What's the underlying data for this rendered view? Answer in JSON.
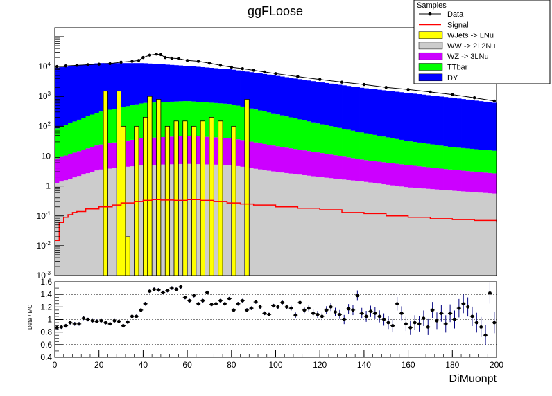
{
  "title": "ggFLoose",
  "chart_data": [
    {
      "type": "area",
      "title": "ggFLoose",
      "log_y": true,
      "xlim": [
        0,
        200
      ],
      "ylim": [
        0.001,
        200000
      ],
      "ytick_labels": [
        "10^-3",
        "10^-2",
        "10^-1",
        "1",
        "10",
        "10^2",
        "10^3",
        "10^4"
      ],
      "legend": {
        "title": "Samples",
        "placement": "top-right",
        "entries": [
          {
            "label": "Data",
            "color": "#000000",
            "style": "marker"
          },
          {
            "label": "Signal",
            "color": "#ff0000",
            "style": "line"
          },
          {
            "label": "WJets -> LNu",
            "color": "#ffff00",
            "style": "fill"
          },
          {
            "label": "WW -> 2L2Nu",
            "color": "#cccccc",
            "style": "fill"
          },
          {
            "label": "WZ -> 3LNu",
            "color": "#cc00ff",
            "style": "fill"
          },
          {
            "label": "TTbar",
            "color": "#00ff00",
            "style": "fill"
          },
          {
            "label": "DY",
            "color": "#0000ff",
            "style": "fill"
          }
        ]
      },
      "bin_width": 2,
      "stack_order": [
        "WW -> 2L2Nu",
        "WZ -> 3LNu",
        "TTbar",
        "DY"
      ],
      "stack_edges_x": [
        0,
        20,
        40,
        60,
        80,
        100,
        120,
        140,
        160,
        180,
        200
      ],
      "stack_edges": {
        "WW -> 2L2Nu": [
          1.2,
          3.5,
          5.0,
          5.5,
          5.0,
          3.0,
          2.0,
          1.4,
          0.9,
          0.7,
          0.55
        ],
        "WZ -> 3LNu": [
          8,
          24,
          40,
          48,
          40,
          22,
          13,
          7.5,
          5,
          3.5,
          2.6
        ],
        "TTbar": [
          80,
          300,
          600,
          700,
          550,
          260,
          120,
          60,
          32,
          20,
          15
        ],
        "DY": [
          9000,
          13000,
          13000,
          10500,
          8000,
          5000,
          3000,
          1900,
          1300,
          900,
          600
        ]
      },
      "wjets_spikes": [
        {
          "x": 23,
          "y": 1500
        },
        {
          "x": 29,
          "y": 1500
        },
        {
          "x": 31,
          "y": 100
        },
        {
          "x": 33,
          "y": 0.02
        },
        {
          "x": 37,
          "y": 100
        },
        {
          "x": 41,
          "y": 200
        },
        {
          "x": 43,
          "y": 1000
        },
        {
          "x": 47,
          "y": 800
        },
        {
          "x": 51,
          "y": 100
        },
        {
          "x": 55,
          "y": 150
        },
        {
          "x": 59,
          "y": 150
        },
        {
          "x": 63,
          "y": 100
        },
        {
          "x": 67,
          "y": 150
        },
        {
          "x": 71,
          "y": 200
        },
        {
          "x": 75,
          "y": 150
        },
        {
          "x": 81,
          "y": 100
        },
        {
          "x": 87,
          "y": 800
        }
      ],
      "signal_points": [
        [
          0,
          0.015
        ],
        [
          2,
          0.06
        ],
        [
          4,
          0.09
        ],
        [
          6,
          0.11
        ],
        [
          8,
          0.13
        ],
        [
          10,
          0.14
        ],
        [
          14,
          0.17
        ],
        [
          20,
          0.2
        ],
        [
          26,
          0.23
        ],
        [
          30,
          0.27
        ],
        [
          36,
          0.3
        ],
        [
          40,
          0.33
        ],
        [
          44,
          0.35
        ],
        [
          48,
          0.34
        ],
        [
          54,
          0.33
        ],
        [
          60,
          0.35
        ],
        [
          66,
          0.33
        ],
        [
          72,
          0.3
        ],
        [
          78,
          0.27
        ],
        [
          84,
          0.25
        ],
        [
          90,
          0.23
        ],
        [
          100,
          0.2
        ],
        [
          110,
          0.18
        ],
        [
          120,
          0.16
        ],
        [
          130,
          0.13
        ],
        [
          140,
          0.12
        ],
        [
          150,
          0.1
        ],
        [
          160,
          0.09
        ],
        [
          170,
          0.08
        ],
        [
          180,
          0.075
        ],
        [
          190,
          0.07
        ],
        [
          200,
          0.06
        ]
      ],
      "data_points": [
        [
          1,
          10000
        ],
        [
          5,
          10500
        ],
        [
          10,
          11000
        ],
        [
          15,
          11500
        ],
        [
          20,
          12000
        ],
        [
          25,
          12500
        ],
        [
          30,
          14000
        ],
        [
          35,
          15000
        ],
        [
          38,
          16000
        ],
        [
          40,
          20000
        ],
        [
          43,
          24000
        ],
        [
          46,
          26000
        ],
        [
          48,
          25000
        ],
        [
          50,
          20000
        ],
        [
          53,
          19000
        ],
        [
          56,
          18500
        ],
        [
          60,
          16000
        ],
        [
          65,
          15000
        ],
        [
          70,
          13000
        ],
        [
          75,
          11000
        ],
        [
          80,
          9500
        ],
        [
          85,
          8500
        ],
        [
          90,
          7500
        ],
        [
          95,
          6600
        ],
        [
          100,
          5800
        ],
        [
          110,
          4600
        ],
        [
          120,
          3700
        ],
        [
          130,
          3000
        ],
        [
          140,
          2500
        ],
        [
          150,
          2000
        ],
        [
          160,
          1700
        ],
        [
          170,
          1400
        ],
        [
          180,
          1150
        ],
        [
          190,
          900
        ],
        [
          199,
          700
        ]
      ]
    },
    {
      "type": "scatter",
      "ylabel": "Data / MC",
      "xlabel": "DiMuonpt",
      "xlim": [
        0,
        200
      ],
      "ylim": [
        0.4,
        1.6
      ],
      "xtick_labels": [
        "0",
        "20",
        "40",
        "60",
        "80",
        "100",
        "120",
        "140",
        "160",
        "180",
        "200"
      ],
      "ytick_labels": [
        "0.4",
        "0.6",
        "0.8",
        "1",
        "1.2",
        "1.4",
        "1.6"
      ],
      "grid": true,
      "points": [
        [
          1,
          0.87
        ],
        [
          3,
          0.88
        ],
        [
          5,
          0.9
        ],
        [
          7,
          0.95
        ],
        [
          9,
          0.93
        ],
        [
          11,
          0.93
        ],
        [
          13,
          1.02
        ],
        [
          15,
          1.0
        ],
        [
          17,
          0.98
        ],
        [
          19,
          0.97
        ],
        [
          21,
          0.98
        ],
        [
          23,
          0.95
        ],
        [
          25,
          0.93
        ],
        [
          27,
          0.98
        ],
        [
          29,
          0.97
        ],
        [
          31,
          0.9
        ],
        [
          33,
          0.96
        ],
        [
          35,
          1.05
        ],
        [
          37,
          1.05
        ],
        [
          39,
          1.15
        ],
        [
          41,
          1.25
        ],
        [
          43,
          1.45
        ],
        [
          45,
          1.48
        ],
        [
          47,
          1.47
        ],
        [
          49,
          1.43
        ],
        [
          51,
          1.46
        ],
        [
          53,
          1.5
        ],
        [
          55,
          1.48
        ],
        [
          57,
          1.52
        ],
        [
          59,
          1.35
        ],
        [
          61,
          1.3
        ],
        [
          63,
          1.38
        ],
        [
          65,
          1.25
        ],
        [
          67,
          1.3
        ],
        [
          69,
          1.43
        ],
        [
          71,
          1.24
        ],
        [
          73,
          1.25
        ],
        [
          75,
          1.3
        ],
        [
          77,
          1.25
        ],
        [
          79,
          1.33
        ],
        [
          81,
          1.15
        ],
        [
          83,
          1.25
        ],
        [
          85,
          1.3
        ],
        [
          87,
          1.15
        ],
        [
          89,
          1.18
        ],
        [
          91,
          1.28
        ],
        [
          93,
          1.2
        ],
        [
          95,
          1.1
        ],
        [
          97,
          1.08
        ],
        [
          99,
          1.22
        ],
        [
          101,
          1.2
        ],
        [
          103,
          1.27
        ],
        [
          105,
          1.2
        ],
        [
          107,
          1.18
        ],
        [
          109,
          1.07
        ],
        [
          111,
          1.27
        ],
        [
          113,
          1.15
        ],
        [
          115,
          1.18
        ],
        [
          117,
          1.1
        ],
        [
          119,
          1.08
        ],
        [
          121,
          1.05
        ],
        [
          123,
          1.15
        ],
        [
          125,
          1.2
        ],
        [
          127,
          1.12
        ],
        [
          129,
          1.08
        ],
        [
          131,
          1.0
        ],
        [
          133,
          1.17
        ],
        [
          135,
          1.15
        ],
        [
          137,
          1.38
        ],
        [
          139,
          1.1
        ],
        [
          141,
          1.05
        ],
        [
          143,
          1.13
        ],
        [
          145,
          1.1
        ],
        [
          147,
          1.05
        ],
        [
          149,
          1.0
        ],
        [
          151,
          0.95
        ],
        [
          153,
          0.9
        ],
        [
          155,
          1.25
        ],
        [
          157,
          1.1
        ],
        [
          159,
          0.93
        ],
        [
          161,
          0.87
        ],
        [
          163,
          0.95
        ],
        [
          165,
          0.93
        ],
        [
          167,
          1.02
        ],
        [
          169,
          0.88
        ],
        [
          171,
          1.15
        ],
        [
          173,
          0.98
        ],
        [
          175,
          1.1
        ],
        [
          177,
          0.93
        ],
        [
          179,
          1.1
        ],
        [
          181,
          1.0
        ],
        [
          183,
          1.18
        ],
        [
          185,
          1.25
        ],
        [
          187,
          1.2
        ],
        [
          189,
          1.05
        ],
        [
          191,
          0.95
        ],
        [
          193,
          0.88
        ],
        [
          195,
          0.75
        ],
        [
          197,
          1.42
        ],
        [
          199,
          0.95
        ]
      ]
    }
  ]
}
